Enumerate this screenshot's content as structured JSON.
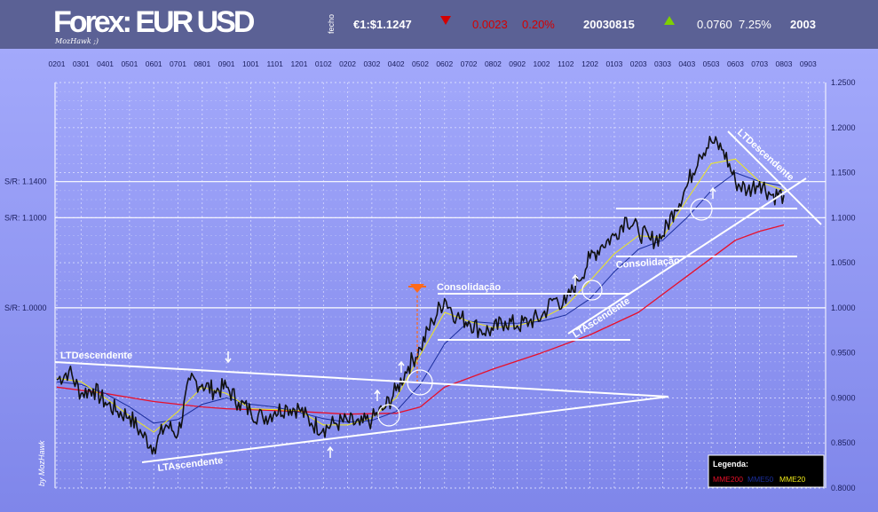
{
  "header": {
    "title": "Forex: EUR USD",
    "signature": "MozHawk ;)",
    "fecho_label": "fecho",
    "close_value": "€1:$1.1247",
    "day_change": "0.0023",
    "day_change_pct": "0.20%",
    "date": "20030815",
    "year_change": "0.0760",
    "year_change_pct": "7.25%",
    "year": "2003",
    "colors": {
      "down": "#d40000",
      "up": "#7ed000",
      "text": "#ffffff"
    },
    "icons": {
      "down": "down-triangle-icon",
      "up": "up-triangle-icon"
    }
  },
  "chart_data": {
    "type": "line",
    "x_tick_labels": [
      "0201",
      "0301",
      "0401",
      "0501",
      "0601",
      "0701",
      "0801",
      "0901",
      "1001",
      "1101",
      "1201",
      "0102",
      "0202",
      "0302",
      "0402",
      "0502",
      "0602",
      "0702",
      "0802",
      "0902",
      "1002",
      "1102",
      "1202",
      "0103",
      "0203",
      "0303",
      "0403",
      "0503",
      "0603",
      "0703",
      "0803",
      "0903"
    ],
    "ylim": [
      0.8,
      1.25
    ],
    "y_ticks": [
      "1.2500",
      "1.2000",
      "1.1500",
      "1.1000",
      "1.0500",
      "1.0000",
      "0.9500",
      "0.9000",
      "0.8500",
      "0.8000"
    ],
    "grid": true,
    "sr_levels": [
      {
        "label": "S/R: 1.1400",
        "value": 1.14
      },
      {
        "label": "S/R: 1.1000",
        "value": 1.1
      },
      {
        "label": "S/R: 1.0000",
        "value": 1.0
      }
    ],
    "series": [
      {
        "name": "price",
        "color": "#111111",
        "x": [
          0,
          0.5,
          1,
          1.5,
          2,
          2.5,
          3,
          3.5,
          4,
          4.5,
          5,
          5.5,
          6,
          6.5,
          7,
          7.5,
          8,
          8.5,
          9,
          9.5,
          10,
          10.5,
          11,
          11.5,
          12,
          12.5,
          13,
          13.5,
          14,
          14.5,
          15,
          15.5,
          16,
          16.5,
          17,
          17.5,
          18,
          18.5,
          19,
          19.5,
          20,
          20.5,
          21,
          21.5,
          22,
          22.5,
          23,
          23.5,
          24,
          24.5,
          25,
          25.5,
          26,
          26.5,
          27,
          27.5,
          28,
          28.5,
          29,
          29.5,
          30
        ],
        "values": [
          0.92,
          0.93,
          0.905,
          0.91,
          0.895,
          0.885,
          0.88,
          0.86,
          0.845,
          0.87,
          0.86,
          0.92,
          0.915,
          0.908,
          0.912,
          0.895,
          0.885,
          0.878,
          0.885,
          0.89,
          0.888,
          0.872,
          0.866,
          0.872,
          0.874,
          0.87,
          0.876,
          0.888,
          0.908,
          0.935,
          0.955,
          0.985,
          1.01,
          0.99,
          0.985,
          0.975,
          0.975,
          0.985,
          0.98,
          0.985,
          0.99,
          1.01,
          1.005,
          1.03,
          1.055,
          1.07,
          1.08,
          1.1,
          1.085,
          1.075,
          1.08,
          1.11,
          1.135,
          1.17,
          1.185,
          1.175,
          1.14,
          1.13,
          1.14,
          1.125,
          1.125
        ]
      },
      {
        "name": "MME200",
        "color": "#e8102a",
        "x": [
          0,
          2,
          4,
          6,
          7,
          8,
          10,
          12,
          14,
          15,
          16,
          18,
          20,
          22,
          24,
          26,
          28,
          29,
          30
        ],
        "values": [
          0.912,
          0.905,
          0.896,
          0.89,
          0.888,
          0.887,
          0.885,
          0.882,
          0.883,
          0.89,
          0.912,
          0.932,
          0.95,
          0.97,
          0.995,
          1.035,
          1.075,
          1.085,
          1.092
        ]
      },
      {
        "name": "MME50",
        "color": "#1b2e9c",
        "x": [
          0,
          1,
          2,
          3,
          4,
          5,
          6,
          7,
          8,
          9,
          10,
          11,
          12,
          13,
          14,
          15,
          16,
          17,
          18,
          19,
          20,
          21,
          22,
          23,
          24,
          25,
          26,
          27,
          28,
          29,
          30
        ],
        "values": [
          0.918,
          0.915,
          0.905,
          0.89,
          0.872,
          0.876,
          0.893,
          0.9,
          0.893,
          0.89,
          0.884,
          0.877,
          0.873,
          0.875,
          0.885,
          0.915,
          0.96,
          0.985,
          0.983,
          0.983,
          0.985,
          0.992,
          1.01,
          1.04,
          1.065,
          1.075,
          1.1,
          1.13,
          1.15,
          1.14,
          1.135
        ]
      },
      {
        "name": "MME20",
        "color": "#f0ea18",
        "x": [
          0,
          1,
          2,
          3,
          4,
          5,
          6,
          7,
          8,
          9,
          10,
          11,
          12,
          13,
          14,
          15,
          16,
          17,
          18,
          19,
          20,
          21,
          22,
          23,
          24,
          25,
          26,
          27,
          28,
          29,
          30
        ],
        "values": [
          0.922,
          0.918,
          0.9,
          0.88,
          0.862,
          0.885,
          0.912,
          0.905,
          0.888,
          0.887,
          0.886,
          0.87,
          0.87,
          0.878,
          0.9,
          0.948,
          0.995,
          0.985,
          0.978,
          0.98,
          0.988,
          1.002,
          1.03,
          1.06,
          1.08,
          1.078,
          1.12,
          1.16,
          1.165,
          1.14,
          1.13
        ]
      }
    ],
    "annotations": [
      {
        "text": "LTDescendente"
      },
      {
        "text": "LTAscendente"
      },
      {
        "text": "Consolidação"
      },
      {
        "text": "Consolidação"
      },
      {
        "text": "LTAscendente"
      },
      {
        "text": "LTDescendente"
      }
    ],
    "legend": {
      "title": "Legenda:",
      "position": "bottom-right",
      "items": [
        "MME200",
        "MME50",
        "MME20"
      ]
    },
    "watermark": "by MozHawk"
  }
}
